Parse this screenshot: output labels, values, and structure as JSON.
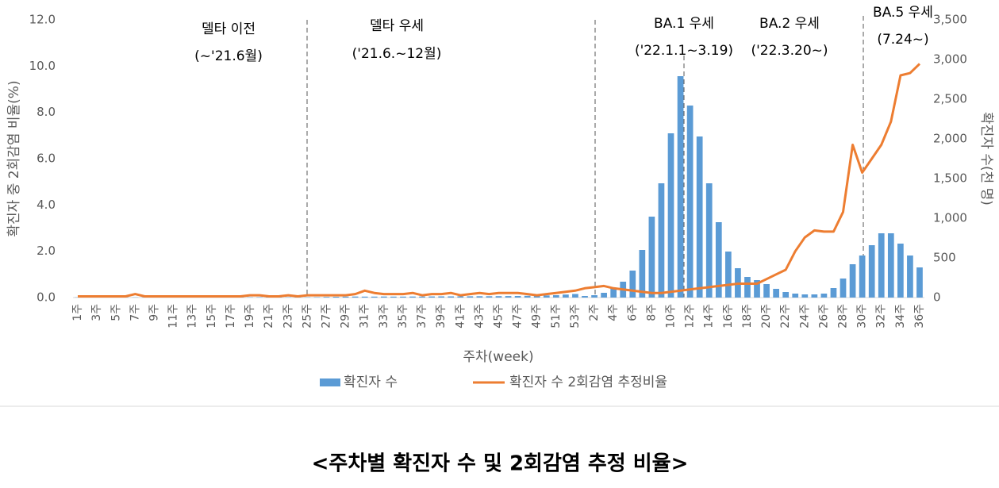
{
  "chart_data": {
    "type": "bar+line",
    "caption": "<주차별 확진자 수 및 2회감염 추정 비율>",
    "ylabel": "확진자 중 2회감염 비율(%)",
    "y2label": "확진자 수(천 명)",
    "xlabel": "주차(week)",
    "annotations": [
      "델타 이전",
      "(~'21.6월)",
      "델타 우세",
      "('21.6.~12월)",
      "BA.1 우세",
      "('22.1.1~3.19)",
      "BA.2 우세",
      "('22.3.20~)",
      "BA.5 우세",
      "(7.24~)"
    ],
    "categories": [
      "1주",
      null,
      "3주",
      null,
      "5주",
      null,
      "7주",
      null,
      "9주",
      null,
      "11주",
      null,
      "13주",
      null,
      "15주",
      null,
      "17주",
      null,
      "19주",
      null,
      "21주",
      null,
      "23주",
      null,
      "25주",
      null,
      "27주",
      null,
      "29주",
      null,
      "31주",
      null,
      "33주",
      null,
      "35주",
      null,
      "37주",
      null,
      "39주",
      null,
      "41주",
      null,
      "43주",
      null,
      "45주",
      null,
      "47주",
      null,
      "49주",
      null,
      "51주",
      null,
      "53주",
      null,
      "2주",
      null,
      "4주",
      null,
      "6주",
      null,
      "8주",
      null,
      "10주",
      null,
      "12주",
      null,
      "14주",
      null,
      "16주",
      null,
      "18주",
      null,
      "20주",
      null,
      "22주",
      null,
      "24주",
      null,
      "26주",
      null,
      "28주",
      null,
      "30주",
      null,
      "32주",
      null,
      "34주",
      null,
      "36주"
    ],
    "series": [
      {
        "name": "확진자 수",
        "color": "#5b9bd5",
        "kind": "bar",
        "axis": "y2",
        "values": [
          3,
          3,
          3,
          2,
          3,
          3,
          3,
          3,
          3,
          3,
          3,
          3,
          3,
          4,
          4,
          4,
          4,
          4,
          4,
          5,
          5,
          5,
          4,
          4,
          4,
          5,
          8,
          10,
          12,
          13,
          12,
          12,
          13,
          12,
          12,
          13,
          13,
          14,
          15,
          15,
          16,
          16,
          17,
          17,
          18,
          19,
          20,
          22,
          24,
          27,
          30,
          38,
          45,
          20,
          30,
          60,
          120,
          200,
          340,
          600,
          1020,
          1440,
          2070,
          2790,
          2420,
          2030,
          1440,
          950,
          580,
          370,
          260,
          220,
          170,
          110,
          70,
          50,
          40,
          40,
          50,
          120,
          240,
          420,
          530,
          660,
          810,
          810,
          680,
          530,
          380
        ]
      },
      {
        "name": "확진자 수 2회감염 추정비율",
        "color": "#ed7d31",
        "kind": "line",
        "axis": "y",
        "values": [
          0.05,
          0.05,
          0.05,
          0.05,
          0.05,
          0.05,
          0.15,
          0.05,
          0.05,
          0.05,
          0.05,
          0.05,
          0.05,
          0.05,
          0.05,
          0.05,
          0.05,
          0.05,
          0.1,
          0.1,
          0.05,
          0.05,
          0.1,
          0.05,
          0.1,
          0.1,
          0.1,
          0.1,
          0.1,
          0.15,
          0.3,
          0.2,
          0.15,
          0.15,
          0.15,
          0.2,
          0.1,
          0.15,
          0.15,
          0.2,
          0.1,
          0.15,
          0.2,
          0.15,
          0.2,
          0.2,
          0.2,
          0.15,
          0.1,
          0.15,
          0.2,
          0.25,
          0.3,
          0.4,
          0.45,
          0.5,
          0.4,
          0.35,
          0.3,
          0.25,
          0.2,
          0.2,
          0.25,
          0.3,
          0.35,
          0.4,
          0.45,
          0.5,
          0.55,
          0.6,
          0.6,
          0.6,
          0.8,
          1.0,
          1.2,
          2.0,
          2.6,
          2.9,
          2.85,
          2.85,
          3.7,
          6.6,
          5.4,
          6.0,
          6.6,
          7.6,
          9.6,
          9.7,
          10.1
        ]
      }
    ],
    "ylim": [
      0,
      12
    ],
    "yticks": [
      {
        "value": 0,
        "label": "0.0"
      },
      {
        "value": 2,
        "label": "2.0"
      },
      {
        "value": 4,
        "label": "4.0"
      },
      {
        "value": 6,
        "label": "6.0"
      },
      {
        "value": 8,
        "label": "8.0"
      },
      {
        "value": 10,
        "label": "10.0"
      },
      {
        "value": 12,
        "label": "12.0"
      }
    ],
    "y2lim": [
      0,
      3500
    ],
    "y2ticks": [
      0,
      500,
      {
        "value": 1000,
        "label": "1,000"
      },
      {
        "value": 1500,
        "label": "1,500"
      },
      {
        "value": 2000,
        "label": "2,000"
      },
      {
        "value": 2500,
        "label": "2,500"
      },
      {
        "value": 3000,
        "label": "3,000"
      },
      {
        "value": 3500,
        "label": "3,500"
      }
    ],
    "legend": "bottom",
    "grid": false
  }
}
